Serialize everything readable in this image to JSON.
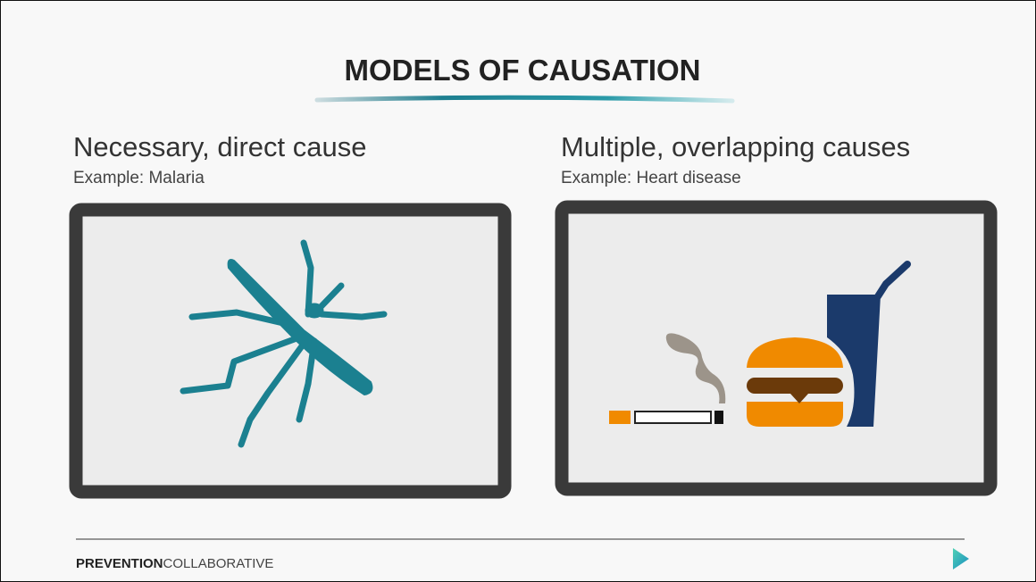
{
  "header": {
    "title": "MODELS OF CAUSATION"
  },
  "panels": [
    {
      "heading": "Necessary, direct cause",
      "example": "Example: Malaria"
    },
    {
      "heading": "Multiple, overlapping causes",
      "example": "Example: Heart disease"
    }
  ],
  "footer": {
    "brand_bold": "PREVENTION",
    "brand_light": "COLLABORATIVE"
  }
}
